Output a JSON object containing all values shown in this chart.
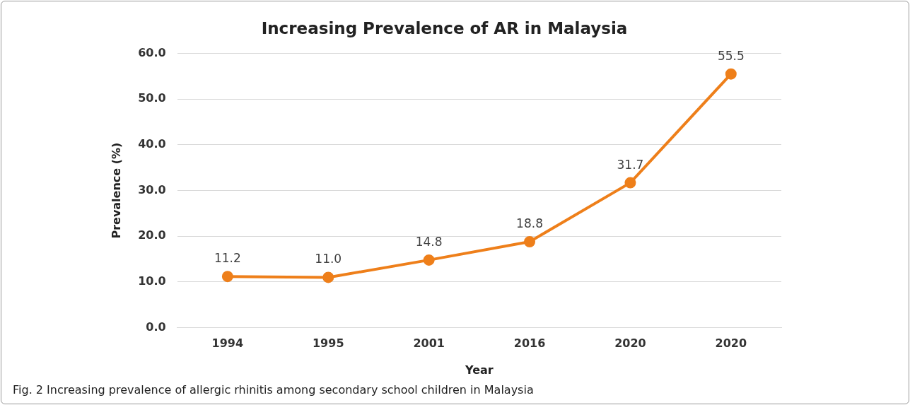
{
  "chart_data": {
    "type": "line",
    "title": "Increasing Prevalence of AR in Malaysia",
    "xlabel": "Year",
    "ylabel": "Prevalence (%)",
    "categories": [
      "1994",
      "1995",
      "2001",
      "2016",
      "2020",
      "2020"
    ],
    "series": [
      {
        "color": "#ee7f1a",
        "values": [
          11.2,
          11.0,
          14.8,
          18.8,
          31.7,
          55.5
        ],
        "value_labels": [
          "11.2",
          "11.0",
          "14.8",
          "18.8",
          "31.7",
          "55.5"
        ]
      }
    ],
    "ylim": [
      0,
      60
    ],
    "yticks": [
      {
        "value": 0,
        "label": "0.0"
      },
      {
        "value": 10,
        "label": "10.0"
      },
      {
        "value": 20,
        "label": "20.0"
      },
      {
        "value": 30,
        "label": "30.0"
      },
      {
        "value": 40,
        "label": "40.0"
      },
      {
        "value": 50,
        "label": "50.0"
      },
      {
        "value": 60,
        "label": "60.0"
      }
    ],
    "grid": "y",
    "legend": false,
    "marker": "circle",
    "line_style": "solid",
    "annotations": [
      "Fig. 2  Increasing prevalence of allergic rhinitis among secondary school children in Malaysia"
    ]
  }
}
